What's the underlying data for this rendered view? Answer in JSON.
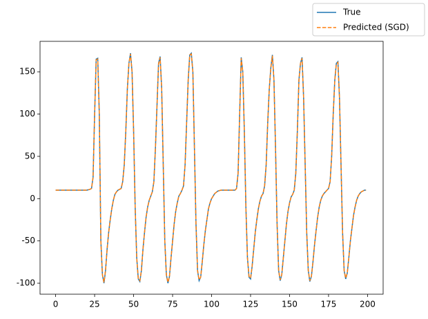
{
  "chart_data": {
    "type": "line",
    "x": [
      0,
      5,
      10,
      15,
      20,
      22,
      23,
      24,
      25,
      26,
      27,
      28,
      29,
      30,
      31,
      32,
      33,
      34,
      35,
      36,
      37,
      38,
      39,
      40,
      42,
      43,
      44,
      45,
      46,
      47,
      48,
      49,
      50,
      51,
      52,
      53,
      54,
      55,
      56,
      57,
      58,
      59,
      60,
      61,
      62,
      63,
      64,
      65,
      66,
      67,
      68,
      69,
      70,
      71,
      72,
      73,
      74,
      75,
      76,
      77,
      78,
      79,
      80,
      81,
      82,
      83,
      84,
      85,
      86,
      87,
      88,
      89,
      90,
      91,
      92,
      93,
      94,
      95,
      96,
      97,
      98,
      99,
      100,
      102,
      104,
      106,
      110,
      115,
      116,
      117,
      118,
      119,
      120,
      121,
      122,
      123,
      124,
      125,
      126,
      127,
      128,
      129,
      130,
      131,
      132,
      133,
      134,
      135,
      136,
      137,
      138,
      139,
      140,
      141,
      142,
      143,
      144,
      145,
      146,
      147,
      148,
      149,
      150,
      151,
      152,
      153,
      154,
      155,
      156,
      157,
      158,
      159,
      160,
      161,
      162,
      163,
      164,
      165,
      166,
      167,
      168,
      169,
      170,
      171,
      172,
      173,
      174,
      175,
      176,
      177,
      178,
      179,
      180,
      181,
      182,
      183,
      184,
      185,
      186,
      187,
      188,
      189,
      190,
      191,
      192,
      193,
      194,
      195,
      196,
      197,
      198,
      199
    ],
    "series": [
      {
        "name": "True",
        "color": "#1f77b4",
        "style": "solid",
        "values": [
          10,
          10,
          10,
          10,
          10,
          11,
          12,
          25,
          100,
          165,
          166,
          100,
          -50,
          -90,
          -100,
          -85,
          -60,
          -40,
          -25,
          -12,
          -2,
          5,
          8,
          10,
          12,
          20,
          40,
          80,
          130,
          160,
          172,
          150,
          80,
          -10,
          -70,
          -95,
          -98,
          -85,
          -60,
          -40,
          -22,
          -10,
          -2,
          3,
          8,
          20,
          60,
          110,
          160,
          168,
          130,
          40,
          -50,
          -90,
          -100,
          -92,
          -70,
          -50,
          -30,
          -15,
          -5,
          3,
          6,
          10,
          15,
          40,
          90,
          140,
          170,
          172,
          150,
          60,
          -30,
          -85,
          -97,
          -93,
          -75,
          -55,
          -38,
          -25,
          -12,
          -5,
          0,
          6,
          9,
          10,
          10,
          10,
          12,
          30,
          100,
          167,
          150,
          80,
          -10,
          -70,
          -93,
          -95,
          -80,
          -60,
          -40,
          -25,
          -12,
          -3,
          3,
          6,
          15,
          40,
          90,
          130,
          155,
          170,
          140,
          60,
          -30,
          -85,
          -97,
          -90,
          -70,
          -50,
          -30,
          -15,
          -5,
          2,
          5,
          10,
          30,
          80,
          140,
          160,
          167,
          120,
          40,
          -40,
          -85,
          -98,
          -92,
          -75,
          -55,
          -38,
          -22,
          -10,
          -2,
          3,
          6,
          8,
          10,
          12,
          20,
          50,
          100,
          140,
          160,
          162,
          120,
          40,
          -40,
          -85,
          -95,
          -88,
          -70,
          -50,
          -35,
          -20,
          -10,
          -2,
          3,
          6,
          8,
          9,
          10,
          10
        ]
      },
      {
        "name": "Predicted (SGD)",
        "color": "#ff7f0e",
        "style": "dashed",
        "values": [
          10,
          10,
          10,
          10,
          10,
          11,
          12,
          25,
          100,
          164,
          165,
          100,
          -50,
          -90,
          -99,
          -85,
          -60,
          -40,
          -25,
          -12,
          -2,
          5,
          8,
          10,
          12,
          20,
          40,
          80,
          130,
          160,
          171,
          150,
          80,
          -10,
          -70,
          -95,
          -97,
          -85,
          -60,
          -40,
          -22,
          -10,
          -2,
          3,
          8,
          20,
          60,
          110,
          159,
          167,
          130,
          40,
          -50,
          -90,
          -99,
          -92,
          -70,
          -50,
          -30,
          -15,
          -5,
          3,
          6,
          10,
          15,
          40,
          90,
          140,
          170,
          171,
          150,
          60,
          -30,
          -85,
          -96,
          -93,
          -75,
          -55,
          -38,
          -25,
          -12,
          -5,
          0,
          6,
          9,
          10,
          10,
          10,
          12,
          30,
          100,
          166,
          150,
          80,
          -10,
          -70,
          -92,
          -94,
          -80,
          -60,
          -40,
          -25,
          -12,
          -3,
          3,
          6,
          15,
          40,
          90,
          130,
          155,
          169,
          140,
          60,
          -30,
          -85,
          -96,
          -90,
          -70,
          -50,
          -30,
          -15,
          -5,
          2,
          5,
          10,
          30,
          80,
          140,
          160,
          166,
          120,
          40,
          -40,
          -85,
          -97,
          -92,
          -75,
          -55,
          -38,
          -22,
          -10,
          -2,
          3,
          6,
          8,
          10,
          12,
          20,
          50,
          100,
          140,
          159,
          161,
          120,
          40,
          -40,
          -85,
          -94,
          -88,
          -70,
          -50,
          -35,
          -20,
          -10,
          -2,
          3,
          6,
          8,
          9,
          10,
          10
        ]
      }
    ],
    "xlim": [
      -10,
      210
    ],
    "ylim": [
      -113,
      186
    ],
    "xticks": [
      0,
      25,
      50,
      75,
      100,
      125,
      150,
      175,
      200
    ],
    "yticks": [
      -100,
      -50,
      0,
      50,
      100,
      150
    ],
    "legend": "upper right outside"
  }
}
